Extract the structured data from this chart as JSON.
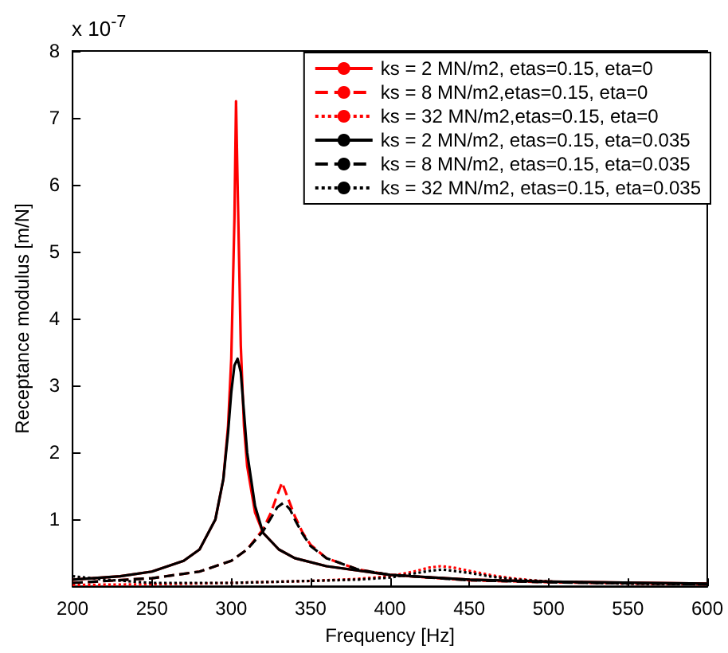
{
  "chart_data": {
    "type": "line",
    "xlabel": "Frequency [Hz]",
    "ylabel": "Receptance modulus [m/N]",
    "annotations": [
      "x 10$^{-7}$"
    ],
    "xlim": [
      200,
      600
    ],
    "xticks": [
      200,
      250,
      300,
      350,
      400,
      450,
      500,
      550,
      600
    ],
    "ylim": [
      0,
      8
    ],
    "yticks": [
      {
        "value": 0,
        "label": null
      },
      1,
      2,
      3,
      4,
      5,
      6,
      7,
      8
    ],
    "grid": false,
    "legend": "top right",
    "marker": "none",
    "series": [
      {
        "name": "ks = 2 MN/m2, etas=0.15, eta=0",
        "color": "#ff0000",
        "line_style": "solid",
        "x": [
          200,
          230,
          250,
          270,
          280,
          290,
          295,
          298,
          300,
          302,
          303,
          304,
          306,
          308,
          310,
          315,
          320,
          330,
          340,
          360,
          400,
          450,
          500,
          600
        ],
        "values": [
          0.1,
          0.15,
          0.22,
          0.38,
          0.55,
          1.0,
          1.6,
          2.4,
          3.4,
          5.5,
          7.25,
          6.0,
          3.6,
          2.4,
          1.8,
          1.1,
          0.8,
          0.55,
          0.42,
          0.3,
          0.17,
          0.1,
          0.07,
          0.04
        ]
      },
      {
        "name": "ks = 8 MN/m2,etas=0.15, eta=0",
        "color": "#ff0000",
        "line_style": "dashed",
        "x": [
          200,
          250,
          280,
          300,
          310,
          320,
          325,
          328,
          332,
          336,
          340,
          345,
          350,
          360,
          380,
          400,
          450,
          500,
          600
        ],
        "values": [
          0.05,
          0.12,
          0.22,
          0.38,
          0.55,
          0.85,
          1.1,
          1.3,
          1.55,
          1.3,
          1.05,
          0.8,
          0.62,
          0.42,
          0.25,
          0.17,
          0.09,
          0.06,
          0.03
        ]
      },
      {
        "name": "ks = 32 MN/m2,etas=0.15, eta=0",
        "color": "#ff0000",
        "line_style": "dotted",
        "x": [
          200,
          250,
          300,
          350,
          380,
          400,
          415,
          425,
          432,
          440,
          450,
          465,
          480,
          500,
          550,
          600
        ],
        "values": [
          0.02,
          0.03,
          0.05,
          0.08,
          0.11,
          0.15,
          0.22,
          0.28,
          0.3,
          0.28,
          0.23,
          0.16,
          0.11,
          0.07,
          0.04,
          0.03
        ]
      },
      {
        "name": "ks = 2 MN/m2, etas=0.15, eta=0.035",
        "color": "#000000",
        "line_style": "solid",
        "x": [
          200,
          230,
          250,
          270,
          280,
          290,
          295,
          298,
          300,
          302,
          304,
          306,
          308,
          310,
          315,
          320,
          330,
          340,
          360,
          400,
          450,
          500,
          600
        ],
        "values": [
          0.1,
          0.15,
          0.22,
          0.38,
          0.55,
          1.0,
          1.6,
          2.3,
          2.9,
          3.3,
          3.4,
          3.2,
          2.6,
          2.0,
          1.2,
          0.8,
          0.55,
          0.42,
          0.3,
          0.17,
          0.1,
          0.07,
          0.04
        ]
      },
      {
        "name": "ks = 8 MN/m2, etas=0.15, eta=0.035",
        "color": "#000000",
        "line_style": "dashed",
        "x": [
          200,
          250,
          280,
          300,
          310,
          320,
          325,
          329,
          333,
          337,
          340,
          345,
          350,
          360,
          380,
          400,
          450,
          500,
          600
        ],
        "values": [
          0.05,
          0.12,
          0.22,
          0.38,
          0.55,
          0.82,
          1.02,
          1.18,
          1.25,
          1.15,
          1.0,
          0.78,
          0.6,
          0.42,
          0.25,
          0.17,
          0.09,
          0.06,
          0.03
        ]
      },
      {
        "name": "ks = 32 MN/m2, etas=0.15, eta=0.035",
        "color": "#000000",
        "line_style": "dotted",
        "x": [
          200,
          220,
          250,
          300,
          350,
          380,
          400,
          415,
          425,
          433,
          440,
          450,
          465,
          480,
          500,
          550,
          600
        ],
        "values": [
          0.15,
          0.1,
          0.05,
          0.05,
          0.08,
          0.1,
          0.13,
          0.19,
          0.23,
          0.25,
          0.23,
          0.2,
          0.14,
          0.1,
          0.07,
          0.04,
          0.03
        ]
      }
    ]
  }
}
